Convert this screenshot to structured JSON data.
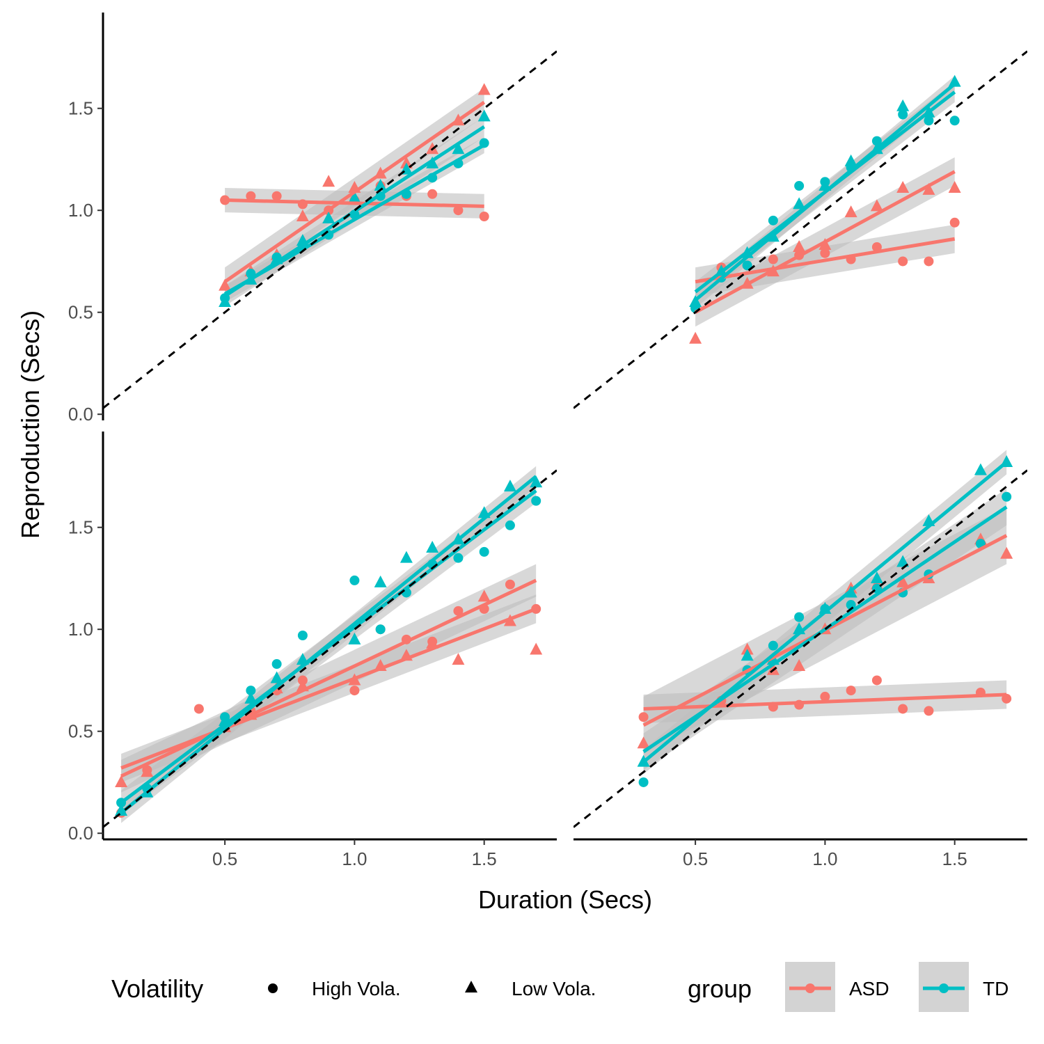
{
  "chart_data": {
    "type": "scatter",
    "xlabel": "Duration (Secs)",
    "ylabel": "Reproduction (Secs)",
    "x_ticks": [
      "0.5",
      "1.0",
      "1.5"
    ],
    "y_ticks": [
      "0.0",
      "0.5",
      "1.0",
      "1.5"
    ],
    "xlim": [
      0.03,
      1.78
    ],
    "ylim": [
      -0.03,
      1.97
    ],
    "reference_line": "y = x (dashed)",
    "legend_position": "bottom",
    "colors": {
      "ASD": "#F8766D",
      "TD": "#00BFC4",
      "ribbon": "#BEBEBE"
    },
    "legend": {
      "shape_title": "Volatility",
      "shape_items": [
        {
          "label": "High Vola.",
          "shape": "circle"
        },
        {
          "label": "Low Vola.",
          "shape": "triangle"
        }
      ],
      "color_title": "group",
      "color_items": [
        {
          "label": "ASD",
          "color": "#F8766D"
        },
        {
          "label": "TD",
          "color": "#00BFC4"
        }
      ]
    },
    "panels": [
      {
        "position": "top-left",
        "series": [
          {
            "group": "ASD",
            "volatility": "High Vola.",
            "x": [
              0.5,
              0.6,
              0.7,
              0.8,
              0.9,
              1.0,
              1.1,
              1.2,
              1.3,
              1.4,
              1.5
            ],
            "y": [
              1.05,
              1.07,
              1.07,
              1.03,
              1.0,
              1.05,
              1.12,
              1.07,
              1.08,
              1.0,
              0.97
            ],
            "fit": [
              [
                0.5,
                1.05
              ],
              [
                1.5,
                1.02
              ]
            ],
            "se": 0.06
          },
          {
            "group": "ASD",
            "volatility": "Low Vola.",
            "x": [
              0.5,
              0.6,
              0.7,
              0.8,
              0.9,
              1.0,
              1.1,
              1.2,
              1.3,
              1.4,
              1.5
            ],
            "y": [
              0.63,
              0.7,
              0.78,
              0.97,
              1.14,
              1.11,
              1.18,
              1.23,
              1.3,
              1.44,
              1.59
            ],
            "fit": [
              [
                0.5,
                0.65
              ],
              [
                1.5,
                1.53
              ]
            ],
            "se": 0.07
          },
          {
            "group": "TD",
            "volatility": "High Vola.",
            "x": [
              0.5,
              0.6,
              0.7,
              0.8,
              0.9,
              1.0,
              1.1,
              1.2,
              1.3,
              1.4,
              1.5
            ],
            "y": [
              0.57,
              0.69,
              0.77,
              0.83,
              0.88,
              0.98,
              1.07,
              1.08,
              1.16,
              1.23,
              1.33
            ],
            "fit": [
              [
                0.5,
                0.59
              ],
              [
                1.5,
                1.32
              ]
            ],
            "se": 0.04
          },
          {
            "group": "TD",
            "volatility": "Low Vola.",
            "x": [
              0.5,
              0.6,
              0.7,
              0.8,
              0.9,
              1.0,
              1.1,
              1.2,
              1.3,
              1.4,
              1.5
            ],
            "y": [
              0.55,
              0.66,
              0.76,
              0.85,
              0.96,
              1.06,
              1.12,
              1.2,
              1.23,
              1.3,
              1.46
            ],
            "fit": [
              [
                0.5,
                0.58
              ],
              [
                1.5,
                1.41
              ]
            ],
            "se": 0.05
          }
        ]
      },
      {
        "position": "top-right",
        "series": [
          {
            "group": "ASD",
            "volatility": "High Vola.",
            "x": [
              0.5,
              0.6,
              0.7,
              0.8,
              0.9,
              1.0,
              1.1,
              1.2,
              1.3,
              1.4,
              1.5
            ],
            "y": [
              0.53,
              0.72,
              0.73,
              0.76,
              0.78,
              0.79,
              0.76,
              0.82,
              0.75,
              0.75,
              0.94
            ],
            "fit": [
              [
                0.5,
                0.65
              ],
              [
                1.5,
                0.86
              ]
            ],
            "se": 0.07
          },
          {
            "group": "ASD",
            "volatility": "Low Vola.",
            "x": [
              0.5,
              0.6,
              0.7,
              0.8,
              0.9,
              1.0,
              1.1,
              1.2,
              1.3,
              1.4,
              1.5
            ],
            "y": [
              0.37,
              0.7,
              0.64,
              0.7,
              0.82,
              0.83,
              0.99,
              1.02,
              1.11,
              1.1,
              1.11
            ],
            "fit": [
              [
                0.5,
                0.5
              ],
              [
                1.5,
                1.19
              ]
            ],
            "se": 0.07
          },
          {
            "group": "TD",
            "volatility": "High Vola.",
            "x": [
              0.5,
              0.6,
              0.7,
              0.8,
              0.9,
              1.0,
              1.1,
              1.2,
              1.3,
              1.4,
              1.5
            ],
            "y": [
              0.52,
              0.67,
              0.73,
              0.95,
              1.12,
              1.14,
              1.21,
              1.34,
              1.47,
              1.44,
              1.44
            ],
            "fit": [
              [
                0.5,
                0.6
              ],
              [
                1.5,
                1.58
              ]
            ],
            "se": 0.05
          },
          {
            "group": "TD",
            "volatility": "Low Vola.",
            "x": [
              0.5,
              0.6,
              0.7,
              0.8,
              0.9,
              1.0,
              1.1,
              1.2,
              1.3,
              1.4,
              1.5
            ],
            "y": [
              0.55,
              0.7,
              0.79,
              0.87,
              1.03,
              1.12,
              1.24,
              1.3,
              1.51,
              1.48,
              1.63
            ],
            "fit": [
              [
                0.5,
                0.56
              ],
              [
                1.5,
                1.62
              ]
            ],
            "se": 0.04
          }
        ]
      },
      {
        "position": "bottom-left",
        "series": [
          {
            "group": "ASD",
            "volatility": "High Vola.",
            "x": [
              0.1,
              0.2,
              0.4,
              0.5,
              0.6,
              0.7,
              0.8,
              1.0,
              1.1,
              1.2,
              1.3,
              1.4,
              1.5,
              1.6,
              1.7
            ],
            "y": [
              0.1,
              0.31,
              0.61,
              0.57,
              0.6,
              0.7,
              0.75,
              0.7,
              1.0,
              0.95,
              0.94,
              1.09,
              1.1,
              1.22,
              1.1
            ],
            "fit": [
              [
                0.1,
                0.28
              ],
              [
                1.7,
                1.24
              ]
            ],
            "se": 0.08
          },
          {
            "group": "ASD",
            "volatility": "Low Vola.",
            "x": [
              0.1,
              0.2,
              0.5,
              0.6,
              0.7,
              0.8,
              1.0,
              1.1,
              1.2,
              1.3,
              1.4,
              1.5,
              1.6,
              1.7
            ],
            "y": [
              0.25,
              0.3,
              0.52,
              0.58,
              0.71,
              0.72,
              0.75,
              0.82,
              0.87,
              0.93,
              0.85,
              1.16,
              1.04,
              0.9
            ],
            "fit": [
              [
                0.1,
                0.32
              ],
              [
                1.7,
                1.1
              ]
            ],
            "se": 0.07
          },
          {
            "group": "TD",
            "volatility": "High Vola.",
            "x": [
              0.1,
              0.2,
              0.5,
              0.6,
              0.7,
              0.8,
              1.0,
              1.1,
              1.2,
              1.3,
              1.4,
              1.5,
              1.6,
              1.7
            ],
            "y": [
              0.15,
              0.22,
              0.57,
              0.7,
              0.83,
              0.97,
              1.24,
              1.0,
              1.18,
              1.32,
              1.35,
              1.38,
              1.51,
              1.63
            ],
            "fit": [
              [
                0.1,
                0.15
              ],
              [
                1.7,
                1.68
              ]
            ],
            "se": 0.06
          },
          {
            "group": "TD",
            "volatility": "Low Vola.",
            "x": [
              0.1,
              0.2,
              0.5,
              0.6,
              0.7,
              0.8,
              1.0,
              1.1,
              1.2,
              1.3,
              1.4,
              1.5,
              1.6,
              1.7
            ],
            "y": [
              0.11,
              0.2,
              0.55,
              0.66,
              0.76,
              0.85,
              0.95,
              1.23,
              1.35,
              1.4,
              1.44,
              1.57,
              1.7,
              1.72
            ],
            "fit": [
              [
                0.1,
                0.1
              ],
              [
                1.7,
                1.75
              ]
            ],
            "se": 0.05
          }
        ]
      },
      {
        "position": "bottom-right",
        "series": [
          {
            "group": "ASD",
            "volatility": "High Vola.",
            "x": [
              0.3,
              0.6,
              0.7,
              0.8,
              0.9,
              1.0,
              1.1,
              1.2,
              1.3,
              1.4,
              1.6,
              1.7
            ],
            "y": [
              0.57,
              0.65,
              0.8,
              0.62,
              0.63,
              0.67,
              0.7,
              0.75,
              0.61,
              0.6,
              0.69,
              0.66
            ],
            "fit": [
              [
                0.3,
                0.61
              ],
              [
                1.7,
                0.68
              ]
            ],
            "se": 0.07
          },
          {
            "group": "ASD",
            "volatility": "Low Vola.",
            "x": [
              0.3,
              0.7,
              0.8,
              0.9,
              1.0,
              1.1,
              1.2,
              1.3,
              1.4,
              1.6,
              1.7
            ],
            "y": [
              0.44,
              0.9,
              0.8,
              0.82,
              1.0,
              1.2,
              1.22,
              1.23,
              1.25,
              1.44,
              1.37
            ],
            "fit": [
              [
                0.3,
                0.53
              ],
              [
                1.7,
                1.46
              ]
            ],
            "se": 0.14
          },
          {
            "group": "TD",
            "volatility": "High Vola.",
            "x": [
              0.3,
              0.7,
              0.8,
              0.9,
              1.0,
              1.1,
              1.2,
              1.3,
              1.4,
              1.6,
              1.7
            ],
            "y": [
              0.25,
              0.8,
              0.92,
              1.06,
              1.1,
              1.12,
              1.2,
              1.18,
              1.27,
              1.42,
              1.65
            ],
            "fit": [
              [
                0.3,
                0.4
              ],
              [
                1.7,
                1.6
              ]
            ],
            "se": 0.09
          },
          {
            "group": "TD",
            "volatility": "Low Vola.",
            "x": [
              0.3,
              0.7,
              0.8,
              0.9,
              1.0,
              1.1,
              1.2,
              1.3,
              1.4,
              1.6,
              1.7
            ],
            "y": [
              0.35,
              0.87,
              0.85,
              1.0,
              1.1,
              1.18,
              1.25,
              1.33,
              1.53,
              1.78,
              1.82
            ],
            "fit": [
              [
                0.3,
                0.35
              ],
              [
                1.7,
                1.82
              ]
            ],
            "se": 0.06
          }
        ]
      }
    ]
  }
}
